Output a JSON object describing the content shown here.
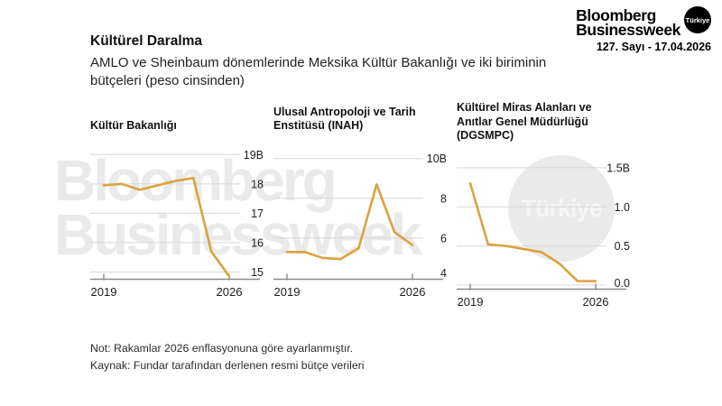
{
  "header": {
    "title": "Kültürel Daralma",
    "subtitle": "AMLO ve Sheinbaum dönemlerinde Meksika Kültür Bakanlığı ve iki biriminin bütçeleri (peso cinsinden)"
  },
  "logo": {
    "line1": "Bloomberg",
    "line2": "Businessweek",
    "badge": "Türkiye",
    "issue": "127. Sayı - 17.04.2026"
  },
  "watermark": {
    "line1": "Bloomberg",
    "line2": "Businessweek",
    "badge": "Türkiye"
  },
  "footnotes": {
    "note": "Not: Rakamlar 2026 enflasyonuna göre ayarlanmıştır.",
    "source": "Kaynak: Fundar tarafından derlenen resmi bütçe verileri"
  },
  "colors": {
    "line": "#DBA23E",
    "grid": "#d8d8d8",
    "axis": "#8a8a8a",
    "text": "#1d1d1d",
    "watermark": "#eaeaea"
  },
  "chart_data": [
    {
      "type": "line",
      "title": "Kültür Bakanlığı",
      "x": [
        2019,
        2020,
        2021,
        2022,
        2023,
        2024,
        2025,
        2026
      ],
      "values": [
        17.95,
        18.0,
        17.8,
        17.95,
        18.1,
        18.2,
        15.7,
        14.85
      ],
      "yticks": [
        19,
        18,
        17,
        16,
        15
      ],
      "ytick_labels": [
        "19B",
        "18",
        "17",
        "16",
        "15"
      ],
      "ylim": [
        14.8,
        19.1
      ],
      "xtick_labels": [
        "2019",
        "2026"
      ],
      "grid": true,
      "legend": "none"
    },
    {
      "type": "line",
      "title": "Ulusal Antropoloji ve Tarih Enstitüsü (INAH)",
      "x": [
        2019,
        2020,
        2021,
        2022,
        2023,
        2024,
        2025,
        2026
      ],
      "values": [
        5.3,
        5.3,
        5.0,
        4.95,
        5.5,
        8.7,
        6.3,
        5.65
      ],
      "yticks": [
        10,
        8,
        6,
        4
      ],
      "ytick_labels": [
        "10B",
        "8",
        "6",
        "4"
      ],
      "ylim": [
        4.0,
        10.35
      ],
      "xtick_labels": [
        "2019",
        "2026"
      ],
      "grid": true,
      "legend": "none"
    },
    {
      "type": "line",
      "title": "Kültürel Miras Alanları ve Anıtlar Genel Müdürlüğü (DGSMPC)",
      "x": [
        2019,
        2020,
        2021,
        2022,
        2023,
        2024,
        2025,
        2026
      ],
      "values": [
        1.3,
        0.52,
        0.5,
        0.46,
        0.42,
        0.27,
        0.05,
        0.05
      ],
      "yticks": [
        1.5,
        1.0,
        0.5,
        0.0
      ],
      "ytick_labels": [
        "1.5B",
        "1.0",
        "0.5",
        "0.0"
      ],
      "ylim": [
        -0.035,
        1.58
      ],
      "xtick_labels": [
        "2019",
        "2026"
      ],
      "grid": true,
      "legend": "none"
    }
  ]
}
